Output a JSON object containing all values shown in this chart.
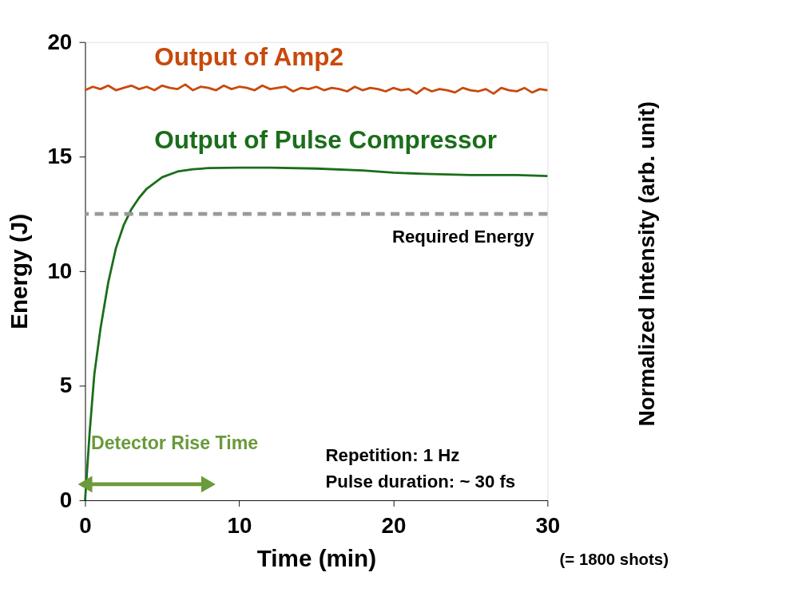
{
  "chart_data": {
    "type": "line",
    "xlabel": "Time (min)",
    "ylabel": "Energy (J)",
    "xlim": [
      0,
      30
    ],
    "ylim": [
      0,
      20
    ],
    "xticks": [
      0,
      10,
      20,
      30
    ],
    "yticks": [
      0,
      5,
      10,
      15,
      20
    ],
    "grid": false,
    "legend": false,
    "line_style": "solid",
    "marker": "none",
    "series": [
      {
        "name": "Output of Amp2",
        "color": "#c8490c",
        "x": [
          0,
          0.5,
          1,
          1.5,
          2,
          2.5,
          3,
          3.5,
          4,
          4.5,
          5,
          5.5,
          6,
          6.5,
          7,
          7.5,
          8,
          8.5,
          9,
          9.5,
          10,
          10.5,
          11,
          11.5,
          12,
          12.5,
          13,
          13.5,
          14,
          14.5,
          15,
          15.5,
          16,
          16.5,
          17,
          17.5,
          18,
          18.5,
          19,
          19.5,
          20,
          20.5,
          21,
          21.5,
          22,
          22.5,
          23,
          23.5,
          24,
          24.5,
          25,
          25.5,
          26,
          26.5,
          27,
          27.5,
          28,
          28.5,
          29,
          29.5,
          30
        ],
        "values": [
          17.9,
          18.05,
          17.95,
          18.1,
          17.9,
          18.0,
          18.1,
          17.95,
          18.05,
          17.9,
          18.1,
          18.0,
          17.95,
          18.15,
          17.9,
          18.05,
          18.0,
          17.9,
          18.1,
          17.95,
          18.05,
          18.0,
          17.9,
          18.1,
          17.95,
          18.0,
          18.05,
          17.85,
          18.0,
          17.95,
          18.05,
          17.9,
          18.0,
          17.95,
          17.85,
          18.05,
          17.9,
          18.0,
          17.95,
          17.85,
          18.0,
          17.9,
          17.95,
          17.75,
          18.0,
          17.85,
          17.95,
          17.9,
          17.8,
          18.0,
          17.9,
          17.85,
          17.95,
          17.75,
          18.0,
          17.9,
          17.85,
          18.0,
          17.8,
          17.95,
          17.9
        ]
      },
      {
        "name": "Output of Pulse Compressor",
        "color": "#1a6e1a",
        "x": [
          0,
          0.3,
          0.6,
          1,
          1.5,
          2,
          2.5,
          3,
          3.5,
          4,
          5,
          6,
          7,
          8,
          10,
          12,
          15,
          18,
          20,
          22,
          25,
          28,
          30
        ],
        "values": [
          0,
          3,
          5.5,
          7.5,
          9.5,
          11,
          12,
          12.7,
          13.2,
          13.6,
          14.1,
          14.35,
          14.45,
          14.5,
          14.52,
          14.52,
          14.48,
          14.4,
          14.3,
          14.25,
          14.2,
          14.2,
          14.15
        ]
      }
    ],
    "ref_lines": [
      {
        "axis": "y",
        "value": 12.5,
        "label": "Required Energy",
        "color": "#999999",
        "line_style": "dashed"
      }
    ],
    "annotations": [
      "Repetition: 1 Hz",
      "Pulse duration: ~ 30 fs",
      "(= 1800 shots)",
      "Normalized Intensity (arb. unit)",
      {
        "text": "Detector Rise Time",
        "x": 8,
        "y": 0.7
      }
    ]
  }
}
